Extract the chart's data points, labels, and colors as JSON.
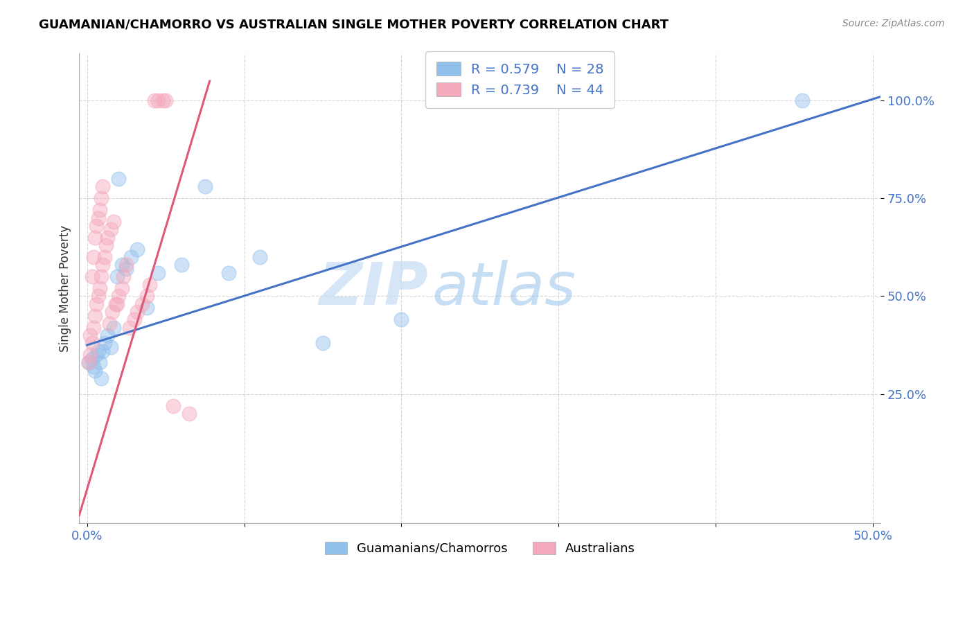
{
  "title": "GUAMANIAN/CHAMORRO VS AUSTRALIAN SINGLE MOTHER POVERTY CORRELATION CHART",
  "source": "Source: ZipAtlas.com",
  "ylabel": "Single Mother Poverty",
  "xlim": [
    -0.005,
    0.505
  ],
  "ylim": [
    -0.08,
    1.12
  ],
  "xticks": [
    0.0,
    0.1,
    0.2,
    0.3,
    0.4,
    0.5
  ],
  "yticks": [
    0.25,
    0.5,
    0.75,
    1.0
  ],
  "yticklabels": [
    "25.0%",
    "50.0%",
    "75.0%",
    "100.0%"
  ],
  "watermark_zip": "ZIP",
  "watermark_atlas": "atlas",
  "legend_blue_r": "R = 0.579",
  "legend_blue_n": "N = 28",
  "legend_pink_r": "R = 0.739",
  "legend_pink_n": "N = 44",
  "blue_color": "#92C0EC",
  "pink_color": "#F4A8BB",
  "blue_line_color": "#4472C4",
  "pink_line_color": "#E05878",
  "blue_scatter_x": [
    0.001,
    0.003,
    0.004,
    0.005,
    0.006,
    0.007,
    0.008,
    0.009,
    0.01,
    0.011,
    0.013,
    0.015,
    0.017,
    0.019,
    0.022,
    0.025,
    0.028,
    0.032,
    0.038,
    0.045,
    0.06,
    0.075,
    0.09,
    0.11,
    0.15,
    0.2,
    0.455,
    0.02
  ],
  "blue_scatter_y": [
    0.33,
    0.34,
    0.32,
    0.31,
    0.35,
    0.36,
    0.33,
    0.29,
    0.36,
    0.38,
    0.4,
    0.37,
    0.42,
    0.55,
    0.58,
    0.57,
    0.6,
    0.62,
    0.47,
    0.56,
    0.58,
    0.78,
    0.56,
    0.6,
    0.38,
    0.44,
    1.0,
    0.8
  ],
  "pink_scatter_x": [
    0.001,
    0.002,
    0.002,
    0.003,
    0.003,
    0.004,
    0.004,
    0.005,
    0.005,
    0.006,
    0.006,
    0.007,
    0.007,
    0.008,
    0.008,
    0.009,
    0.009,
    0.01,
    0.01,
    0.011,
    0.012,
    0.013,
    0.014,
    0.015,
    0.016,
    0.017,
    0.018,
    0.019,
    0.02,
    0.022,
    0.023,
    0.025,
    0.027,
    0.03,
    0.032,
    0.035,
    0.038,
    0.04,
    0.043,
    0.045,
    0.048,
    0.05,
    0.055,
    0.065
  ],
  "pink_scatter_y": [
    0.33,
    0.35,
    0.4,
    0.38,
    0.55,
    0.42,
    0.6,
    0.45,
    0.65,
    0.48,
    0.68,
    0.5,
    0.7,
    0.52,
    0.72,
    0.55,
    0.75,
    0.58,
    0.78,
    0.6,
    0.63,
    0.65,
    0.43,
    0.67,
    0.46,
    0.69,
    0.48,
    0.48,
    0.5,
    0.52,
    0.55,
    0.58,
    0.42,
    0.44,
    0.46,
    0.48,
    0.5,
    0.53,
    1.0,
    1.0,
    1.0,
    1.0,
    0.22,
    0.2
  ],
  "blue_trend_x": [
    0.0,
    0.505
  ],
  "blue_trend_y": [
    0.375,
    1.01
  ],
  "pink_trend_x": [
    -0.005,
    0.078
  ],
  "pink_trend_y": [
    -0.06,
    1.05
  ]
}
